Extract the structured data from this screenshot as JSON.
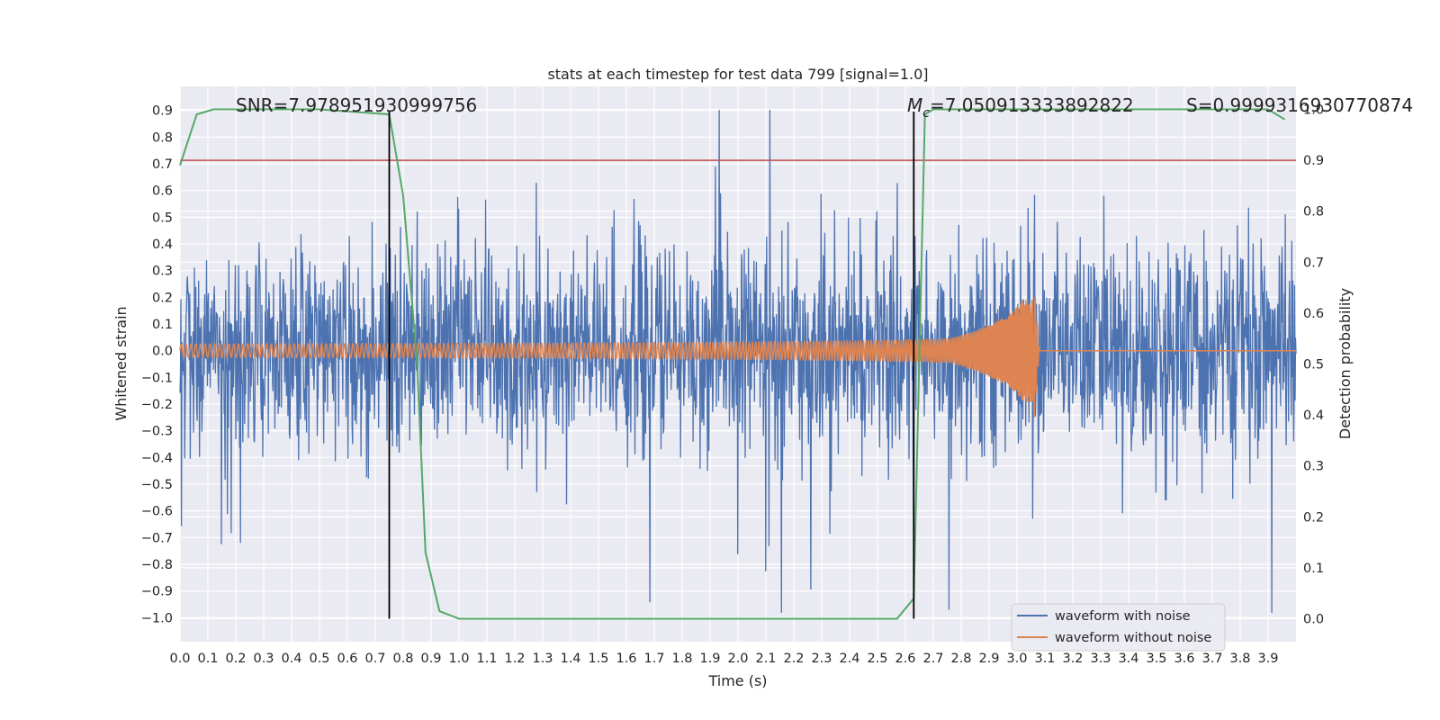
{
  "chart_data": {
    "type": "line",
    "title": "stats at each timestep for test data 799 [signal=1.0]",
    "xlabel": "Time (s)",
    "ylabel": "Whitened strain",
    "y2label": "Detection probability",
    "xlim": [
      0.0,
      4.0
    ],
    "ylim": [
      -1.09,
      0.99
    ],
    "y2lim": [
      -0.045,
      1.045
    ],
    "grid": true,
    "legend_position": "lower right",
    "xticks": [
      "0.0",
      "0.1",
      "0.2",
      "0.3",
      "0.4",
      "0.5",
      "0.6",
      "0.7",
      "0.8",
      "0.9",
      "1.0",
      "1.1",
      "1.2",
      "1.3",
      "1.4",
      "1.5",
      "1.6",
      "1.7",
      "1.8",
      "1.9",
      "2.0",
      "2.1",
      "2.2",
      "2.3",
      "2.4",
      "2.5",
      "2.6",
      "2.7",
      "2.8",
      "2.9",
      "3.0",
      "3.1",
      "3.2",
      "3.3",
      "3.4",
      "3.5",
      "3.6",
      "3.7",
      "3.8",
      "3.9"
    ],
    "yticks": [
      "0.9",
      "0.8",
      "0.7",
      "0.6",
      "0.5",
      "0.4",
      "0.3",
      "0.2",
      "0.1",
      "0.0",
      "−0.1",
      "−0.2",
      "−0.3",
      "−0.4",
      "−0.5",
      "−0.6",
      "−0.7",
      "−0.8",
      "−0.9",
      "−1.0"
    ],
    "y2ticks": [
      "1.0",
      "0.9",
      "0.8",
      "0.7",
      "0.6",
      "0.5",
      "0.4",
      "0.3",
      "0.2",
      "0.1",
      "0.0"
    ],
    "annotations": {
      "snr": "SNR=7.978951930999756",
      "mc_symbol": "M",
      "mc_sub": "c",
      "mc_value": "=7.050913333892822",
      "s": "S=0.9999316930770874"
    },
    "series": [
      {
        "name": "waveform with noise",
        "color": "#4c72b0",
        "type": "noisy_whitened_strain",
        "amplitude_range": [
          -0.98,
          0.9
        ]
      },
      {
        "name": "waveform without noise",
        "color": "#dd8452",
        "type": "chirp",
        "start_amplitude": 0.025,
        "peak_x": 3.06,
        "peak_amplitude": 0.19,
        "min_amplitude": -0.28,
        "end_x": 3.08
      },
      {
        "name": "detection probability",
        "color": "#55a868",
        "axis": "y2",
        "x": [
          0.0,
          0.06,
          0.12,
          0.25,
          0.5,
          0.75,
          0.8,
          0.85,
          0.88,
          0.93,
          1.0,
          1.5,
          2.0,
          2.57,
          2.63,
          2.67,
          2.7,
          3.0,
          3.5,
          3.9,
          3.96
        ],
        "y": [
          0.89,
          0.99,
          1.0,
          1.0,
          1.0,
          0.99,
          0.83,
          0.5,
          0.13,
          0.015,
          0.0,
          0.0,
          0.0,
          0.0,
          0.04,
          0.99,
          1.0,
          1.0,
          1.0,
          1.0,
          0.98
        ]
      }
    ],
    "threshold_line": {
      "y2": 0.9,
      "color": "#c44e52"
    },
    "vertical_lines": [
      {
        "x": 0.75,
        "color": "#000000"
      },
      {
        "x": 2.63,
        "color": "#000000"
      }
    ],
    "legend": [
      "waveform with noise",
      "waveform without noise"
    ]
  }
}
